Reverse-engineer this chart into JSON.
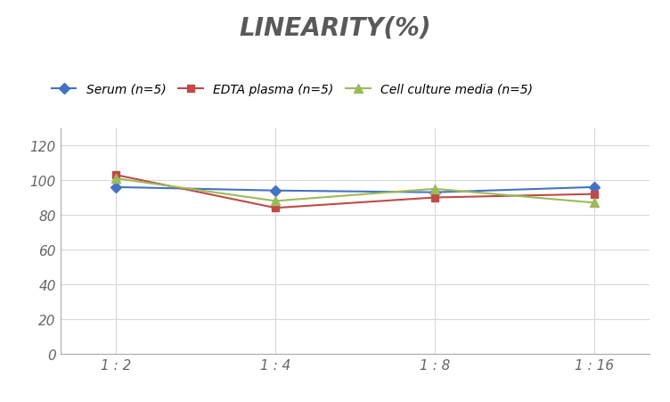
{
  "title": "LINEARITY(%)",
  "x_labels": [
    "1 : 2",
    "1 : 4",
    "1 : 8",
    "1 : 16"
  ],
  "x_positions": [
    0,
    1,
    2,
    3
  ],
  "series": [
    {
      "label": "Serum (n=5)",
      "values": [
        96,
        94,
        93,
        96
      ],
      "color": "#4472C4",
      "marker": "D",
      "marker_size": 6,
      "linestyle": "-"
    },
    {
      "label": "EDTA plasma (n=5)",
      "values": [
        103,
        84,
        90,
        92
      ],
      "color": "#BE4B48",
      "marker": "s",
      "marker_size": 6,
      "linestyle": "-"
    },
    {
      "label": "Cell culture media (n=5)",
      "values": [
        101,
        88,
        95,
        87
      ],
      "color": "#9BBB59",
      "marker": "^",
      "marker_size": 7,
      "linestyle": "-"
    }
  ],
  "ylim": [
    0,
    130
  ],
  "yticks": [
    0,
    20,
    40,
    60,
    80,
    100,
    120
  ],
  "background_color": "#ffffff",
  "grid_color": "#d8d8d8",
  "title_fontsize": 20,
  "legend_fontsize": 10,
  "tick_fontsize": 11,
  "title_color": "#595959"
}
